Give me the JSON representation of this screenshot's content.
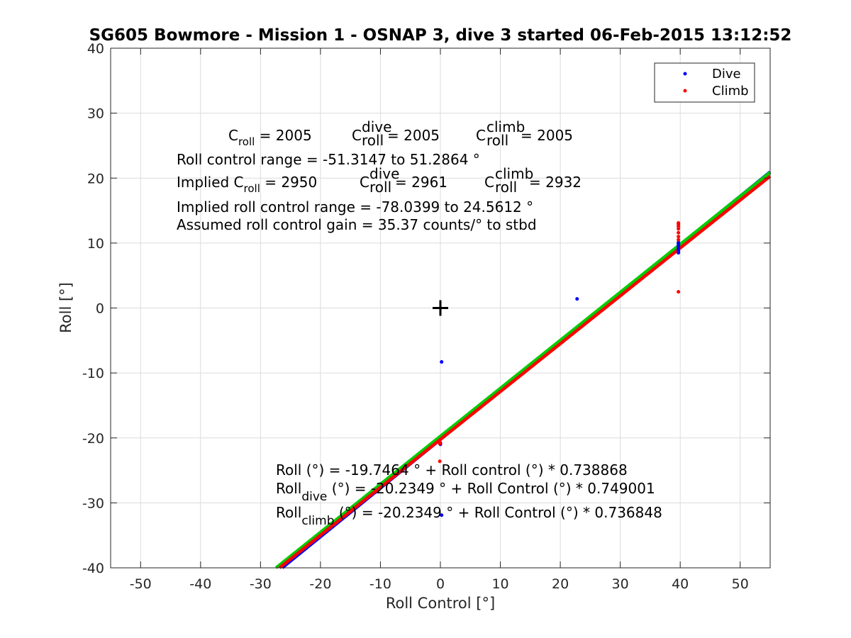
{
  "chart_data": {
    "type": "scatter",
    "title": "SG605 Bowmore - Mission 1 - OSNAP 3, dive 3 started 06-Feb-2015 13:12:52",
    "xlabel": "Roll Control [°]",
    "ylabel": "Roll [°]",
    "xlim": [
      -55,
      55
    ],
    "ylim": [
      -40,
      40
    ],
    "xticks": [
      -50,
      -40,
      -30,
      -20,
      -10,
      0,
      10,
      20,
      30,
      40,
      50
    ],
    "yticks": [
      -40,
      -30,
      -20,
      -10,
      0,
      10,
      20,
      30,
      40
    ],
    "grid": true,
    "legend": {
      "placement": "top-right",
      "entries": [
        {
          "name": "Dive",
          "color": "#0000ff"
        },
        {
          "name": "Climb",
          "color": "#ff0000"
        }
      ]
    },
    "series": [
      {
        "name": "Dive",
        "color": "#0000ff",
        "points": [
          [
            0.2,
            -8.3
          ],
          [
            22.8,
            1.4
          ],
          [
            0.2,
            -31.9
          ],
          [
            0.0,
            -20.8
          ],
          [
            0.0,
            -21.0
          ],
          [
            39.7,
            8.5
          ],
          [
            39.7,
            8.8
          ],
          [
            39.7,
            9.0
          ],
          [
            39.7,
            9.3
          ],
          [
            39.7,
            9.6
          ],
          [
            39.7,
            9.9
          ],
          [
            39.7,
            10.1
          ]
        ]
      },
      {
        "name": "Climb",
        "color": "#ff0000",
        "points": [
          [
            -0.1,
            -23.6
          ],
          [
            -0.1,
            -20.6
          ],
          [
            -0.1,
            -20.9
          ],
          [
            39.7,
            2.5
          ],
          [
            39.7,
            10.5
          ],
          [
            39.7,
            11.0
          ],
          [
            39.7,
            11.6
          ],
          [
            39.7,
            12.2
          ],
          [
            39.7,
            12.6
          ],
          [
            39.7,
            12.9
          ],
          [
            39.7,
            13.1
          ]
        ]
      }
    ],
    "fit_lines": [
      {
        "color": "#0000ff",
        "intercept": -20.2349,
        "slope": 0.749001
      },
      {
        "color": "#00cc00",
        "intercept": -19.7464,
        "slope": 0.738868
      },
      {
        "color": "#ff0000",
        "intercept": -20.2349,
        "slope": 0.736848
      }
    ],
    "center_marker": {
      "x": 0,
      "y": 0,
      "symbol": "+"
    },
    "annotations": {
      "c_roll_line": {
        "c1": "C",
        "c1_sub": "roll",
        "c1_val": " = 2005",
        "c2": "C",
        "c2_sup": "dive",
        "c2_sub": "roll",
        "c2_val": " = 2005",
        "c3": "C",
        "c3_sup": "climb",
        "c3_sub": "roll",
        "c3_val": " = 2005"
      },
      "roll_range": "Roll control range = -51.3147 to 51.2864 °",
      "implied_line": {
        "c1": "Implied C",
        "c1_sub": "roll",
        "c1_val": " = 2950",
        "c2": "C",
        "c2_sup": "dive",
        "c2_sub": "roll",
        "c2_val": " = 2961",
        "c3": "C",
        "c3_sup": "climb",
        "c3_sub": "roll",
        "c3_val": " = 2932"
      },
      "implied_range": "Implied roll control range = -78.0399 to 24.5612 °",
      "gain": "Assumed roll control gain = 35.37 counts/° to stbd",
      "fit_all": "Roll (°) = -19.7464 ° + Roll control (°) * 0.738868",
      "fit_dive": {
        "main": "Roll",
        "sub": "dive",
        "rest": " (°) = -20.2349 ° + Roll Control (°) * 0.749001"
      },
      "fit_climb": {
        "main": "Roll",
        "sub": "climb",
        "rest": " (°) = -20.2349 ° + Roll Control (°) * 0.736848"
      }
    }
  }
}
